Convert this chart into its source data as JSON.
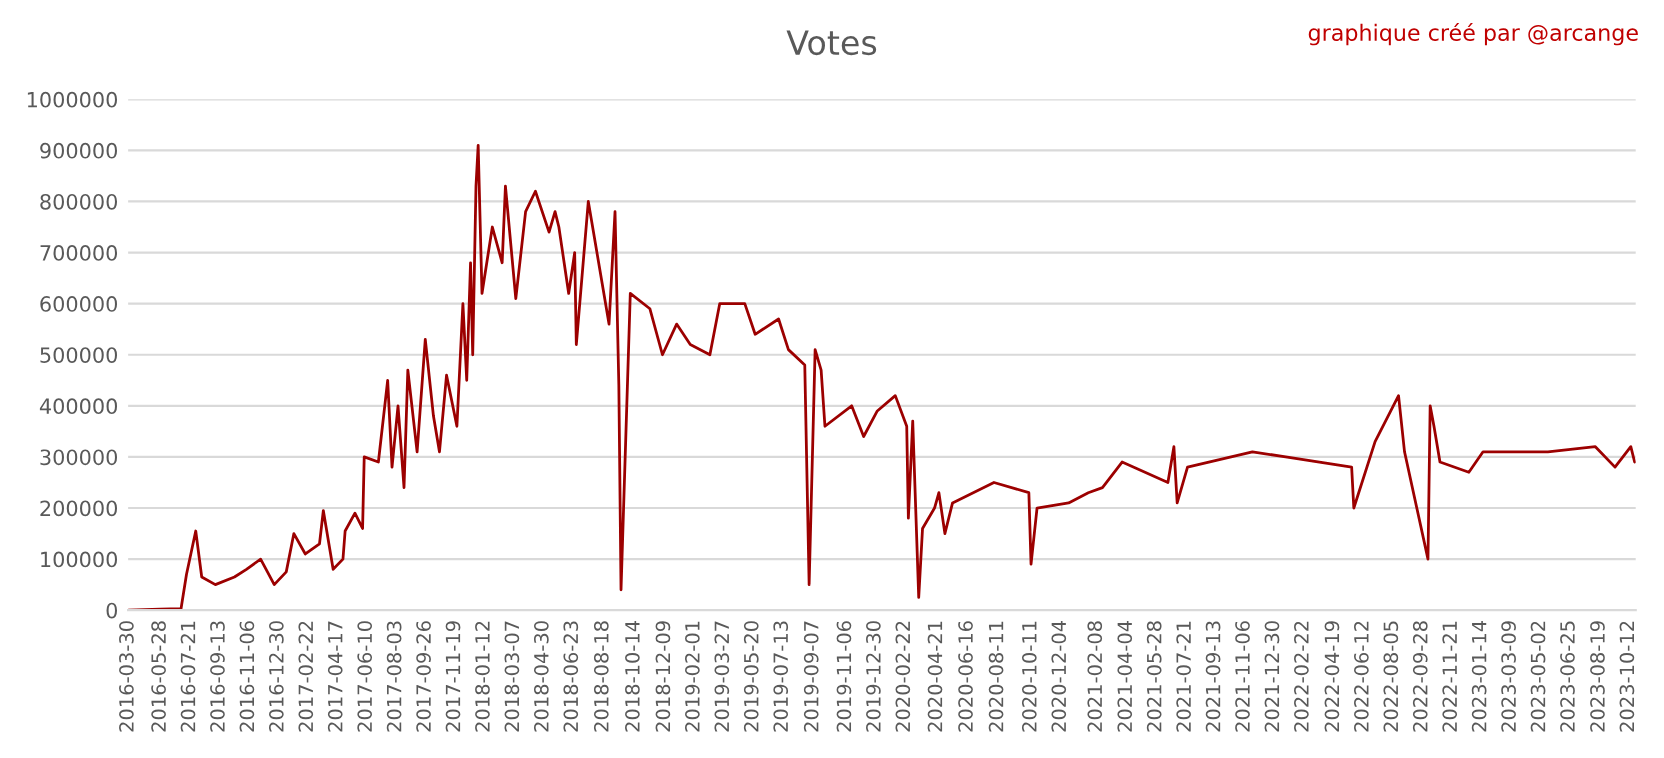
{
  "chart_data": {
    "type": "line",
    "title": "Votes",
    "annotations": [
      "graphique créé par @arcange"
    ],
    "x": [
      "2016-03-30",
      "2016-05-28",
      "2016-07-05",
      "2016-07-15",
      "2016-08-01",
      "2016-08-12",
      "2016-09-06",
      "2016-10-11",
      "2016-11-02",
      "2016-11-28",
      "2016-12-23",
      "2017-01-14",
      "2017-01-28",
      "2017-02-18",
      "2017-03-16",
      "2017-03-23",
      "2017-04-10",
      "2017-04-28",
      "2017-05-02",
      "2017-05-20",
      "2017-06-03",
      "2017-06-06",
      "2017-07-02",
      "2017-07-19",
      "2017-07-27",
      "2017-08-07",
      "2017-08-18",
      "2017-08-25",
      "2017-09-11",
      "2017-09-26",
      "2017-10-11",
      "2017-10-22",
      "2017-11-04",
      "2017-11-23",
      "2017-12-04",
      "2017-12-11",
      "2017-12-18",
      "2017-12-22",
      "2017-12-28",
      "2018-01-01",
      "2018-01-08",
      "2018-01-27",
      "2018-02-14",
      "2018-02-20",
      "2018-03-11",
      "2018-03-29",
      "2018-04-16",
      "2018-05-11",
      "2018-05-22",
      "2018-05-29",
      "2018-06-16",
      "2018-06-27",
      "2018-06-30",
      "2018-07-22",
      "2018-08-29",
      "2018-09-09",
      "2018-09-16",
      "2018-09-20",
      "2018-10-07",
      "2018-11-12",
      "2018-12-05",
      "2018-12-31",
      "2019-01-25",
      "2019-03-02",
      "2019-03-20",
      "2019-05-05",
      "2019-05-24",
      "2019-07-06",
      "2019-07-24",
      "2019-08-23",
      "2019-08-31",
      "2019-09-11",
      "2019-09-22",
      "2019-09-29",
      "2019-11-17",
      "2019-12-09",
      "2020-01-03",
      "2020-02-05",
      "2020-02-26",
      "2020-02-29",
      "2020-03-08",
      "2020-03-19",
      "2020-03-26",
      "2020-04-17",
      "2020-04-25",
      "2020-05-06",
      "2020-05-20",
      "2020-08-04",
      "2020-10-07",
      "2020-10-11",
      "2020-10-22",
      "2020-12-19",
      "2021-01-24",
      "2021-02-19",
      "2021-03-27",
      "2021-06-19",
      "2021-06-30",
      "2021-07-06",
      "2021-07-25",
      "2021-11-21",
      "2022-01-21",
      "2022-05-22",
      "2022-05-26",
      "2022-07-04",
      "2022-08-16",
      "2022-08-27",
      "2022-10-09",
      "2022-10-13",
      "2022-10-20",
      "2022-10-31",
      "2022-12-23",
      "2023-01-18",
      "2023-05-17",
      "2023-08-12",
      "2023-09-17",
      "2023-10-16",
      "2023-10-23"
    ],
    "series": [
      {
        "color": "#9c0000",
        "values": [
          0,
          2000,
          3000,
          70000,
          155000,
          65000,
          50000,
          65000,
          80000,
          100000,
          50000,
          75000,
          150000,
          110000,
          130000,
          195000,
          80000,
          100000,
          155000,
          190000,
          160000,
          300000,
          290000,
          450000,
          280000,
          400000,
          240000,
          470000,
          310000,
          530000,
          380000,
          310000,
          460000,
          360000,
          600000,
          450000,
          680000,
          500000,
          830000,
          910000,
          620000,
          750000,
          680000,
          830000,
          610000,
          780000,
          820000,
          740000,
          780000,
          750000,
          620000,
          700000,
          520000,
          800000,
          560000,
          780000,
          440000,
          40000,
          620000,
          590000,
          500000,
          560000,
          520000,
          500000,
          600000,
          600000,
          540000,
          570000,
          510000,
          480000,
          50000,
          510000,
          470000,
          360000,
          400000,
          340000,
          390000,
          420000,
          360000,
          180000,
          370000,
          25000,
          160000,
          200000,
          230000,
          150000,
          210000,
          250000,
          230000,
          90000,
          200000,
          210000,
          230000,
          240000,
          290000,
          250000,
          320000,
          210000,
          280000,
          310000,
          300000,
          280000,
          200000,
          330000,
          420000,
          310000,
          100000,
          400000,
          360000,
          290000,
          270000,
          310000,
          310000,
          320000,
          280000,
          320000,
          290000
        ]
      }
    ],
    "xlim": [
      "2016-03-30",
      "2023-10-25"
    ],
    "xticks": [
      "2016-03-30",
      "2016-05-28",
      "2016-07-21",
      "2016-09-13",
      "2016-11-06",
      "2016-12-30",
      "2017-02-22",
      "2017-04-17",
      "2017-06-10",
      "2017-08-03",
      "2017-09-26",
      "2017-11-19",
      "2018-01-12",
      "2018-03-07",
      "2018-04-30",
      "2018-06-23",
      "2018-08-18",
      "2018-10-14",
      "2018-12-09",
      "2019-02-01",
      "2019-03-27",
      "2019-05-20",
      "2019-07-13",
      "2019-09-07",
      "2019-11-06",
      "2019-12-30",
      "2020-02-22",
      "2020-04-21",
      "2020-06-16",
      "2020-08-11",
      "2020-10-11",
      "2020-12-04",
      "2021-02-08",
      "2021-04-04",
      "2021-05-28",
      "2021-07-21",
      "2021-09-13",
      "2021-11-06",
      "2021-12-30",
      "2022-02-22",
      "2022-04-19",
      "2022-06-12",
      "2022-08-05",
      "2022-09-28",
      "2022-11-21",
      "2023-01-14",
      "2023-03-09",
      "2023-05-02",
      "2023-06-25",
      "2023-08-19",
      "2023-10-12"
    ],
    "ylim": [
      0,
      1000000
    ],
    "yticks": [
      0,
      100000,
      200000,
      300000,
      400000,
      500000,
      600000,
      700000,
      800000,
      900000,
      1000000
    ],
    "grid": "y",
    "marker": "none",
    "line_style": "solid"
  }
}
